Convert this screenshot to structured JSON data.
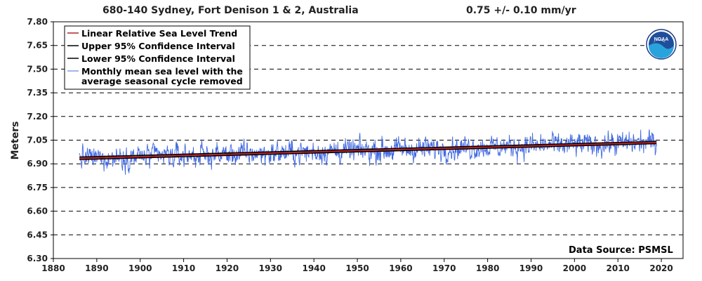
{
  "chart_data": {
    "type": "line",
    "title": "680-140 Sydney, Fort Denison 1 & 2, Australia",
    "trend_label": "0.75 +/-  0.10 mm/yr",
    "ylabel": "Meters",
    "xlabel": "",
    "xlim": [
      1880,
      2025
    ],
    "ylim": [
      6.3,
      7.8
    ],
    "x_ticks": [
      1880,
      1890,
      1900,
      1910,
      1920,
      1930,
      1940,
      1950,
      1960,
      1970,
      1980,
      1990,
      2000,
      2010,
      2020
    ],
    "y_ticks": [
      "6.30",
      "6.45",
      "6.60",
      "6.75",
      "6.90",
      "7.05",
      "7.20",
      "7.35",
      "7.50",
      "7.65",
      "7.80"
    ],
    "grid": "horizontal dashed",
    "legend_position": "top-left",
    "source_note": "Data Source: PSMSL",
    "colors": {
      "trend": "#b22222",
      "upper_ci": "#000000",
      "lower_ci": "#000000",
      "monthly": "#4169e1"
    },
    "series": [
      {
        "name": "Linear Relative Sea Level Trend",
        "x": [
          1886.0,
          2018.9
        ],
        "y": [
          6.935,
          7.035
        ]
      },
      {
        "name": "Upper 95% Confidence Interval",
        "x": [
          1886.0,
          2018.9
        ],
        "y": [
          6.943,
          7.042
        ]
      },
      {
        "name": "Lower 95% Confidence Interval",
        "x": [
          1886.0,
          2018.9
        ],
        "y": [
          6.927,
          7.028
        ]
      },
      {
        "name": "Monthly mean sea level with the average seasonal cycle removed",
        "x_start": 1886.0,
        "x_end": 2018.9,
        "samples_per_year": 12,
        "approx_std_m": 0.04,
        "min": 6.81,
        "max": 7.16
      }
    ]
  },
  "legend": {
    "items": [
      {
        "label": "Linear Relative Sea Level Trend",
        "color": "#b22222"
      },
      {
        "label": "Upper 95% Confidence Interval",
        "color": "#000000"
      },
      {
        "label": "Lower 95% Confidence Interval",
        "color": "#000000"
      },
      {
        "label": "Monthly mean sea level with the",
        "label2": "average seasonal cycle removed",
        "color": "#4169e1"
      }
    ]
  },
  "logo": {
    "text": "NOAA",
    "icon": "noaa-logo-icon"
  }
}
